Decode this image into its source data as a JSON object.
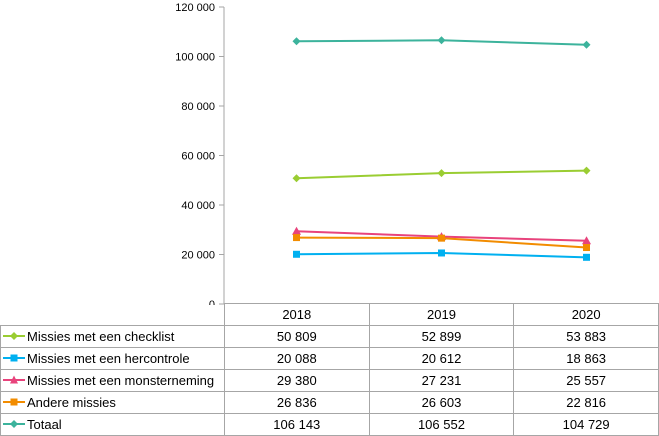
{
  "chart_data": {
    "type": "line",
    "categories": [
      "2018",
      "2019",
      "2020"
    ],
    "ylim": [
      0,
      120000
    ],
    "yticks": [
      "0",
      "20 000",
      "40 000",
      "60 000",
      "80 000",
      "100 000",
      "120 000"
    ],
    "grid": false,
    "legend_placement": "data table below chart",
    "series": [
      {
        "name": "Missies met een checklist",
        "values": [
          50809,
          52899,
          53883
        ],
        "labels": [
          "50 809",
          "52 899",
          "53 883"
        ],
        "color": "#9ACD32",
        "marker": "diamond"
      },
      {
        "name": "Missies met een hercontrole",
        "values": [
          20088,
          20612,
          18863
        ],
        "labels": [
          "20 088",
          "20 612",
          "18 863"
        ],
        "color": "#00B0F0",
        "marker": "square"
      },
      {
        "name": "Missies met een monsterneming",
        "values": [
          29380,
          27231,
          25557
        ],
        "labels": [
          "29 380",
          "27 231",
          "25 557"
        ],
        "color": "#E8437C",
        "marker": "triangle"
      },
      {
        "name": "Andere missies",
        "values": [
          26836,
          26603,
          22816
        ],
        "labels": [
          "26 836",
          "26 603",
          "22 816"
        ],
        "color": "#F28C00",
        "marker": "square"
      },
      {
        "name": "Totaal",
        "values": [
          106143,
          106552,
          104729
        ],
        "labels": [
          "106 143",
          "106 552",
          "104 729"
        ],
        "color": "#3CB39C",
        "marker": "diamond"
      }
    ]
  }
}
